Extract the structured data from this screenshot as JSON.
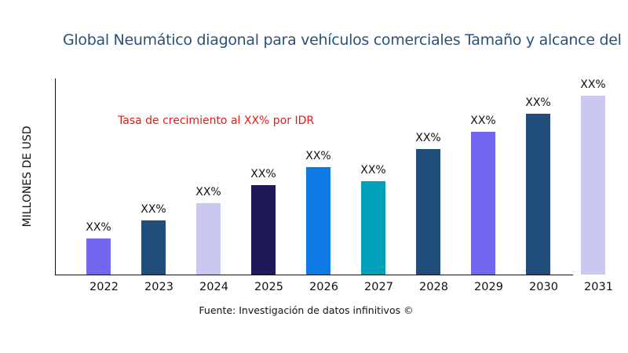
{
  "chart_data": {
    "type": "bar",
    "title": "Global Neumático diagonal para vehículos comerciales Tamaño y alcance del",
    "ylabel": "MILLONES DE USD",
    "xlabel": "",
    "annotation": "Tasa de crecimiento al XX% por IDR",
    "source": "Fuente: Investigación de datos infinitivos ©",
    "categories": [
      "2022",
      "2023",
      "2024",
      "2025",
      "2026",
      "2027",
      "2028",
      "2029",
      "2030",
      "2031"
    ],
    "values": [
      46,
      69,
      91,
      114,
      137,
      119,
      160,
      182,
      205,
      228
    ],
    "data_labels": [
      "XX%",
      "XX%",
      "XX%",
      "XX%",
      "XX%",
      "XX%",
      "XX%",
      "XX%",
      "XX%",
      "XX%"
    ],
    "colors": [
      "#7366f0",
      "#1f4e7a",
      "#c8c8f0",
      "#1e1a5a",
      "#0f7ae5",
      "#00a0b8",
      "#1f4e7a",
      "#7366f0",
      "#1f4e7a",
      "#c8c8f0"
    ],
    "ylim": [
      0,
      250
    ],
    "grid": false,
    "legend": "none"
  }
}
